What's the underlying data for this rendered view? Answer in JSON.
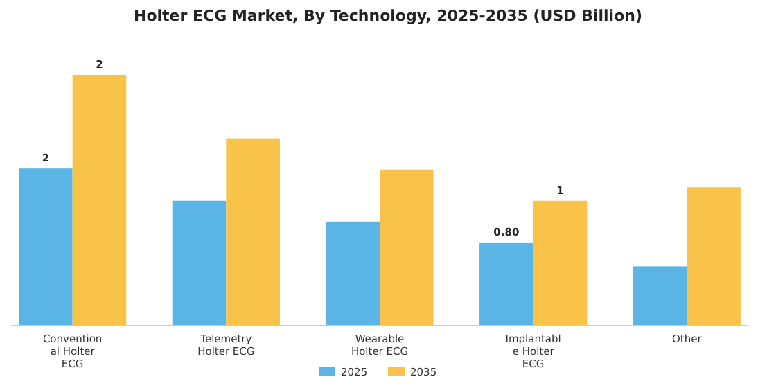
{
  "chart_data": {
    "type": "bar",
    "title": "Holter ECG Market, By Technology, 2025-2035 (USD Billion)",
    "categories": [
      "Conventional Holter ECG",
      "Telemetry Holter ECG",
      "Wearable Holter ECG",
      "Implantable Holter ECG",
      "Other"
    ],
    "series": [
      {
        "name": "2025",
        "color": "#5ab4e5",
        "values": [
          1.51,
          1.2,
          1.0,
          0.8,
          0.57
        ],
        "value_labels": [
          "2",
          null,
          null,
          "0.80",
          null
        ]
      },
      {
        "name": "2035",
        "color": "#f9c34a",
        "values": [
          2.41,
          1.8,
          1.5,
          1.2,
          1.33
        ],
        "value_labels": [
          "2",
          null,
          null,
          "1",
          null
        ]
      }
    ],
    "legend": "bottom"
  }
}
